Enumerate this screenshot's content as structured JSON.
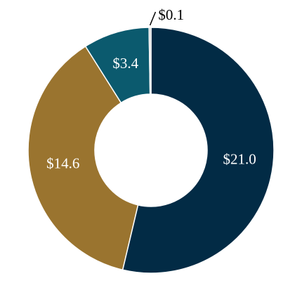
{
  "chart_data": {
    "type": "donut",
    "categories": [
      null,
      null,
      null,
      null
    ],
    "values": [
      21.0,
      14.6,
      3.4,
      0.1
    ],
    "value_labels": [
      "$21.0",
      "$14.6",
      "$3.4",
      "$0.1"
    ],
    "colors": [
      "#022b45",
      "#9a742f",
      "#0b5a6e",
      "#c9c9c9"
    ]
  }
}
